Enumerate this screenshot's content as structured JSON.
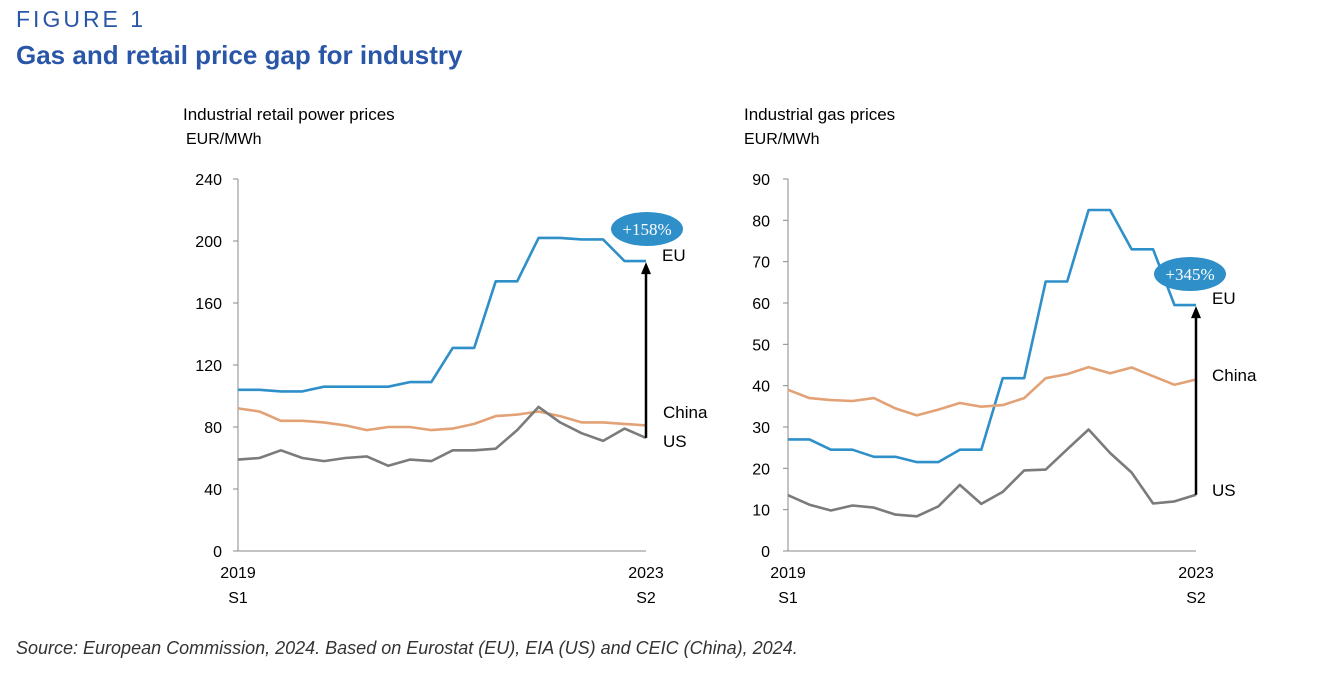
{
  "figure_label": "FIGURE 1",
  "figure_title": "Gas and retail price gap for industry",
  "source": "Source: European Commission, 2024. Based on Eurostat (EU), EIA (US) and CEIC (China), 2024.",
  "colors": {
    "EU": "#2e8fc9",
    "China": "#e3a276",
    "US": "#7b7b7b",
    "badge": "#2e8fc9",
    "arrow": "#000000"
  },
  "chart_data": [
    {
      "type": "line",
      "title": "Industrial retail power prices",
      "ylabel": "EUR/MWh",
      "ylim": [
        0,
        240
      ],
      "yticks": [
        0,
        40,
        80,
        120,
        160,
        200,
        240
      ],
      "x_start_label": [
        "2019",
        "S1"
      ],
      "x_end_label": [
        "2023",
        "S2"
      ],
      "grid": false,
      "series": [
        {
          "name": "EU",
          "values": [
            104,
            104,
            103,
            103,
            106,
            106,
            106,
            106,
            109,
            109,
            131,
            131,
            174,
            174,
            202,
            202,
            201,
            201,
            187,
            187
          ]
        },
        {
          "name": "China",
          "values": [
            92,
            90,
            84,
            84,
            83,
            81,
            78,
            80,
            80,
            78,
            79,
            82,
            87,
            88,
            90,
            87,
            83,
            83,
            82,
            81
          ]
        },
        {
          "name": "US",
          "values": [
            59,
            60,
            65,
            60,
            58,
            60,
            61,
            55,
            59,
            58,
            65,
            65,
            66,
            78,
            93,
            83,
            76,
            71,
            79,
            73
          ]
        }
      ],
      "annotation": {
        "text": "+158%",
        "from_series": "US",
        "to_series": "EU"
      }
    },
    {
      "type": "line",
      "title": "Industrial gas prices",
      "ylabel": "EUR/MWh",
      "ylim": [
        0,
        90
      ],
      "yticks": [
        0,
        10,
        20,
        30,
        40,
        50,
        60,
        70,
        80,
        90
      ],
      "x_start_label": [
        "2019",
        "S1"
      ],
      "x_end_label": [
        "2023",
        "S2"
      ],
      "grid": false,
      "series": [
        {
          "name": "EU",
          "values": [
            27,
            27,
            24.5,
            24.5,
            22.8,
            22.8,
            21.5,
            21.5,
            24.5,
            24.5,
            41.8,
            41.8,
            65.2,
            65.2,
            82.5,
            82.5,
            73,
            73,
            59.5,
            59.5
          ]
        },
        {
          "name": "China",
          "values": [
            39,
            37,
            36.5,
            36.3,
            37,
            34.5,
            32.8,
            34.2,
            35.8,
            34.9,
            35.3,
            37,
            41.8,
            42.8,
            44.5,
            43,
            44.4,
            42.3,
            40.2,
            41.5
          ]
        },
        {
          "name": "US",
          "values": [
            13.5,
            11.2,
            9.8,
            11,
            10.5,
            8.8,
            8.4,
            10.8,
            16,
            11.4,
            14.3,
            19.5,
            19.7,
            24.6,
            29.4,
            23.7,
            19,
            11.5,
            12,
            13.6
          ]
        }
      ],
      "annotation": {
        "text": "+345%",
        "from_series": "US",
        "to_series": "EU"
      }
    }
  ]
}
